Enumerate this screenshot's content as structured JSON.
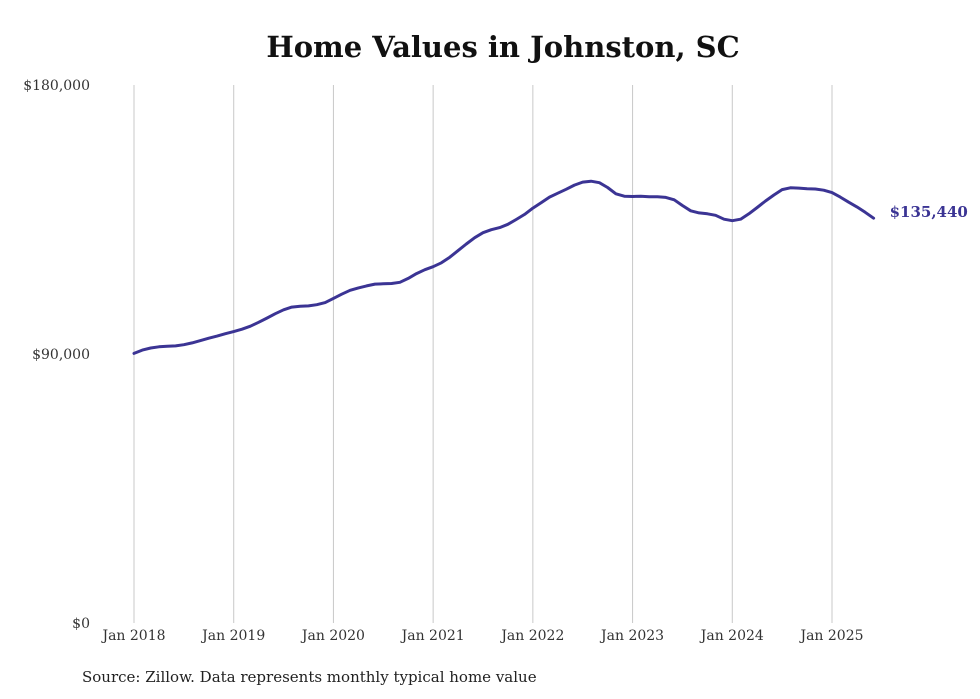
{
  "chart_data": {
    "type": "line",
    "title": "Home Values in Johnston, SC",
    "xlabel": "",
    "ylabel": "",
    "ylim": [
      0,
      180000
    ],
    "y_ticks": [
      "$0",
      "$90,000",
      "$180,000"
    ],
    "y_tick_values": [
      0,
      90000,
      180000
    ],
    "x_ticks": [
      "Jan 2018",
      "Jan 2019",
      "Jan 2020",
      "Jan 2021",
      "Jan 2022",
      "Jan 2023",
      "Jan 2024",
      "Jan 2025"
    ],
    "x_tick_values": [
      2018.0,
      2019.0,
      2020.0,
      2021.0,
      2022.0,
      2023.0,
      2024.0,
      2025.0
    ],
    "grid": "vertical",
    "line_color": "#3b3494",
    "end_label": "$135,440",
    "series": [
      {
        "x": [
          2018.0,
          2018.083,
          2018.167,
          2018.25,
          2018.333,
          2018.417,
          2018.5,
          2018.583,
          2018.667,
          2018.75,
          2018.833,
          2018.917,
          2019.0,
          2019.083,
          2019.167,
          2019.25,
          2019.333,
          2019.417,
          2019.5,
          2019.583,
          2019.667,
          2019.75,
          2019.833,
          2019.917,
          2020.0,
          2020.083,
          2020.167,
          2020.25,
          2020.333,
          2020.417,
          2020.5,
          2020.583,
          2020.667,
          2020.75,
          2020.833,
          2020.917,
          2021.0,
          2021.083,
          2021.167,
          2021.25,
          2021.333,
          2021.417,
          2021.5,
          2021.583,
          2021.667,
          2021.75,
          2021.833,
          2021.917,
          2022.0,
          2022.083,
          2022.167,
          2022.25,
          2022.333,
          2022.417,
          2022.5,
          2022.583,
          2022.667,
          2022.75,
          2022.833,
          2022.917,
          2023.0,
          2023.083,
          2023.167,
          2023.25,
          2023.333,
          2023.417,
          2023.5,
          2023.583,
          2023.667,
          2023.75,
          2023.833,
          2023.917,
          2024.0,
          2024.083,
          2024.167,
          2024.25,
          2024.333,
          2024.417,
          2024.5,
          2024.583,
          2024.667,
          2024.75,
          2024.833,
          2024.917,
          2025.0,
          2025.083,
          2025.167,
          2025.25,
          2025.333,
          2025.417
        ],
        "values": [
          90200,
          91300,
          92000,
          92400,
          92600,
          92700,
          93100,
          93700,
          94500,
          95300,
          96000,
          96800,
          97500,
          98300,
          99300,
          100600,
          102000,
          103500,
          104800,
          105700,
          106000,
          106100,
          106500,
          107200,
          108600,
          110000,
          111300,
          112100,
          112800,
          113400,
          113500,
          113600,
          114000,
          115300,
          116900,
          118200,
          119200,
          120500,
          122400,
          124600,
          126800,
          128900,
          130600,
          131600,
          132300,
          133400,
          135000,
          136700,
          138800,
          140600,
          142500,
          143800,
          145100,
          146500,
          147500,
          147800,
          147300,
          145700,
          143600,
          142800,
          142700,
          142800,
          142600,
          142600,
          142400,
          141600,
          139700,
          137900,
          137200,
          136900,
          136400,
          135100,
          134600,
          135100,
          136900,
          139000,
          141200,
          143200,
          145000,
          145600,
          145500,
          145300,
          145200,
          144800,
          144000,
          142500,
          140800,
          139200,
          137400,
          135440
        ]
      }
    ]
  },
  "footer": {
    "source": "Source: Zillow. Data represents monthly typical home value"
  }
}
